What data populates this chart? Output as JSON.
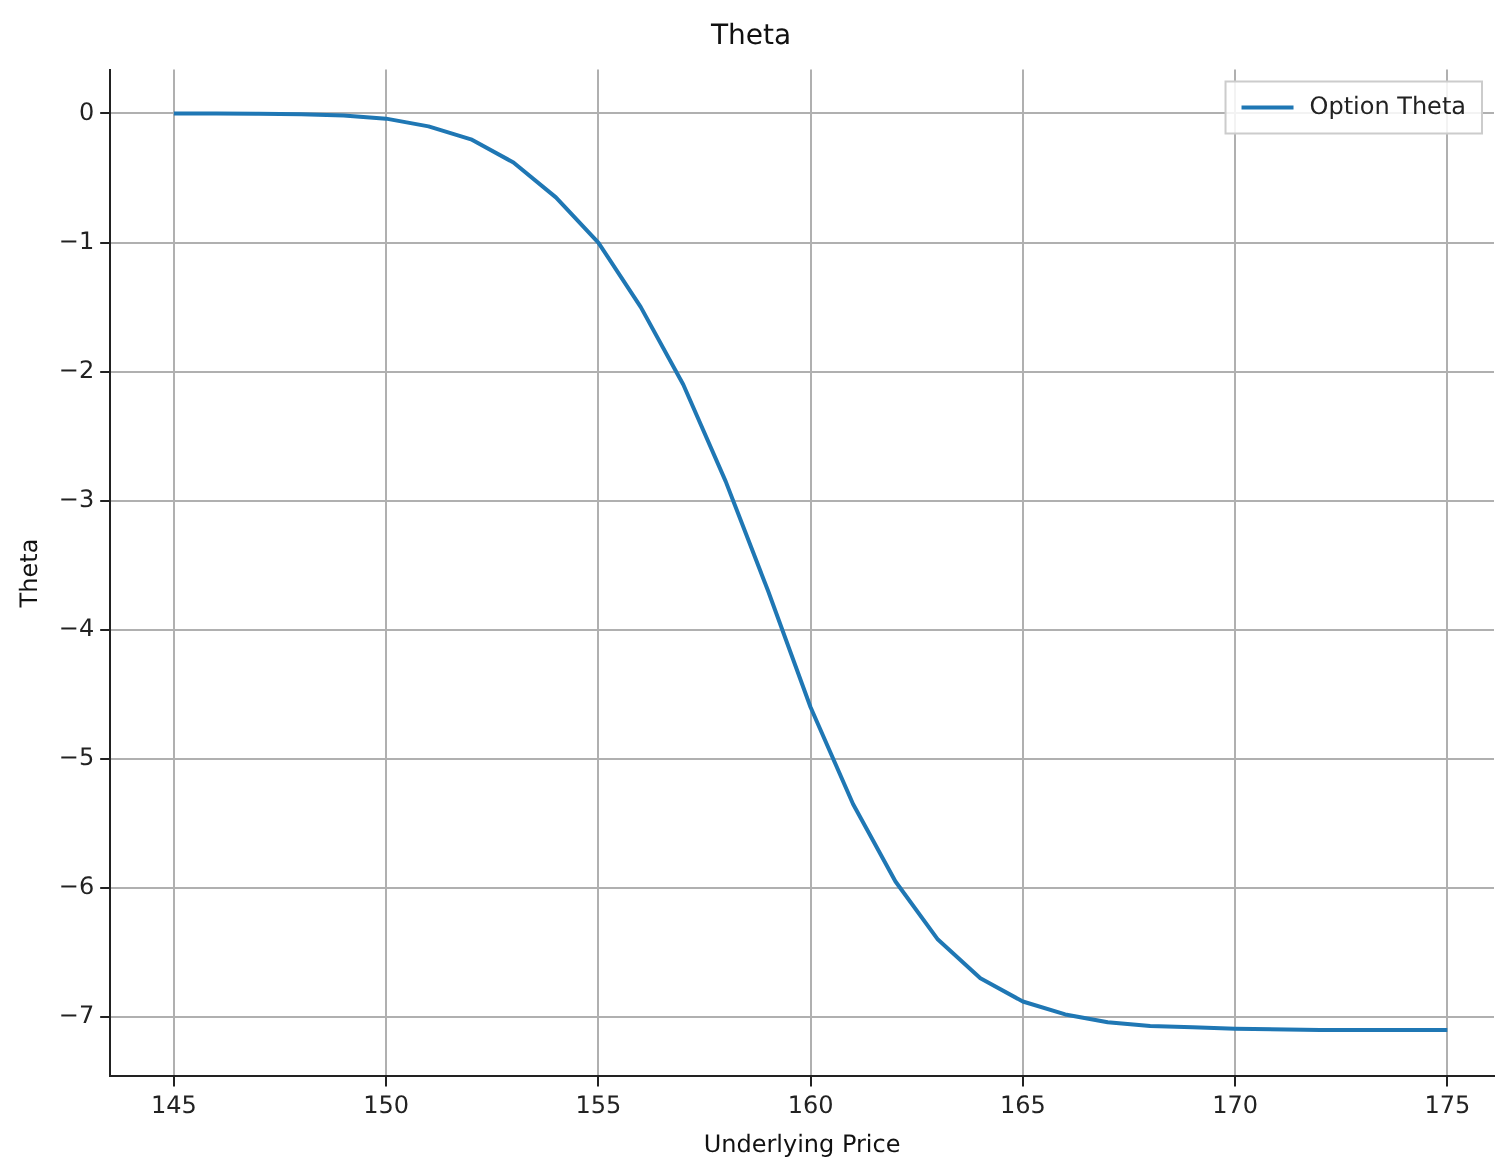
{
  "chart_data": {
    "type": "line",
    "title": "Theta",
    "xlabel": "Underlying Price",
    "ylabel": "Theta",
    "x": [
      145,
      146,
      147,
      148,
      149,
      150,
      151,
      152,
      153,
      154,
      155,
      156,
      157,
      158,
      159,
      160,
      161,
      162,
      163,
      164,
      165,
      166,
      167,
      168,
      169,
      170,
      172,
      175
    ],
    "series": [
      {
        "name": "Option Theta",
        "color": "#1f77b4",
        "values": [
          0,
          0,
          -0.002,
          -0.005,
          -0.015,
          -0.04,
          -0.1,
          -0.2,
          -0.38,
          -0.65,
          -1.0,
          -1.5,
          -2.1,
          -2.85,
          -3.7,
          -4.6,
          -5.35,
          -5.95,
          -6.4,
          -6.7,
          -6.88,
          -6.98,
          -7.04,
          -7.07,
          -7.08,
          -7.09,
          -7.1,
          -7.1
        ]
      }
    ],
    "xlim": [
      143.5,
      176.1
    ],
    "ylim": [
      -7.46,
      0.34
    ],
    "xticks": [
      145,
      150,
      155,
      160,
      165,
      170,
      175
    ],
    "yticks": [
      0,
      -1,
      -2,
      -3,
      -4,
      -5,
      -6,
      -7
    ],
    "grid": true,
    "legend": "top right",
    "marker": "none",
    "line_style": "solid"
  }
}
